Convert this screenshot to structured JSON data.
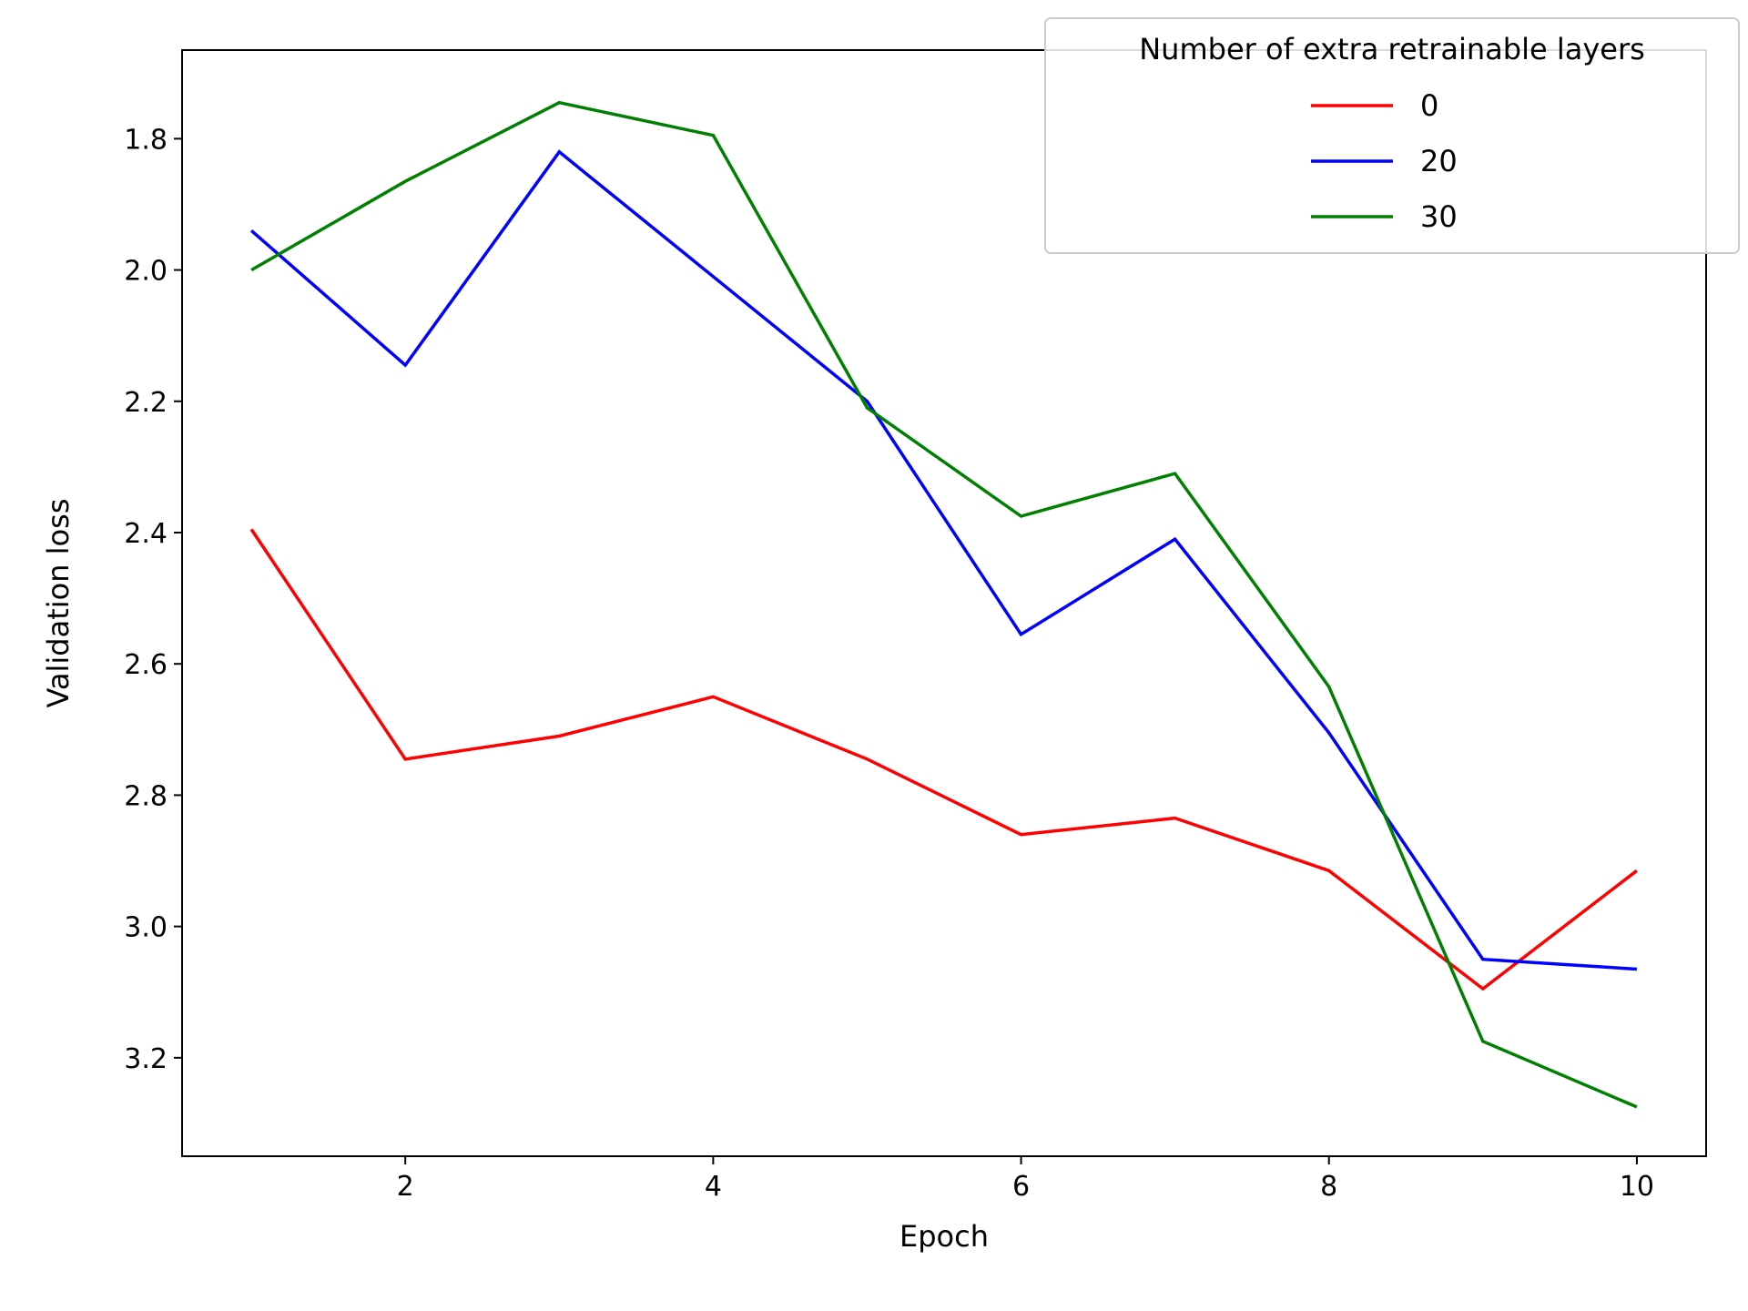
{
  "chart_data": {
    "type": "line",
    "title": "",
    "xlabel": "Epoch",
    "ylabel": "Validation loss",
    "x": [
      1,
      2,
      3,
      4,
      5,
      6,
      7,
      8,
      9,
      10
    ],
    "xlim": [
      0.55,
      10.45
    ],
    "ylim": [
      3.35,
      1.665
    ],
    "y_inverted": true,
    "x_ticks": [
      2,
      4,
      6,
      8,
      10
    ],
    "x_tick_labels": [
      "2",
      "4",
      "6",
      "8",
      "10"
    ],
    "y_ticks": [
      1.8,
      2.0,
      2.2,
      2.4,
      2.6,
      2.8,
      3.0,
      3.2
    ],
    "y_tick_labels": [
      "1.8",
      "2.0",
      "2.2",
      "2.4",
      "2.6",
      "2.8",
      "3.0",
      "3.2"
    ],
    "grid": false,
    "legend": {
      "title": "Number of extra retrainable layers",
      "position": "top-right"
    },
    "series": [
      {
        "name": "0",
        "color": "#ff0000",
        "values": [
          2.395,
          2.745,
          2.71,
          2.65,
          2.745,
          2.86,
          2.835,
          2.915,
          3.095,
          2.915
        ]
      },
      {
        "name": "20",
        "color": "#0000ff",
        "values": [
          1.94,
          2.145,
          1.82,
          2.01,
          2.2,
          2.555,
          2.41,
          2.705,
          3.05,
          3.065
        ]
      },
      {
        "name": "30",
        "color": "#008000",
        "values": [
          2.0,
          1.865,
          1.745,
          1.795,
          2.21,
          2.375,
          2.31,
          2.635,
          3.175,
          3.275
        ]
      }
    ]
  }
}
